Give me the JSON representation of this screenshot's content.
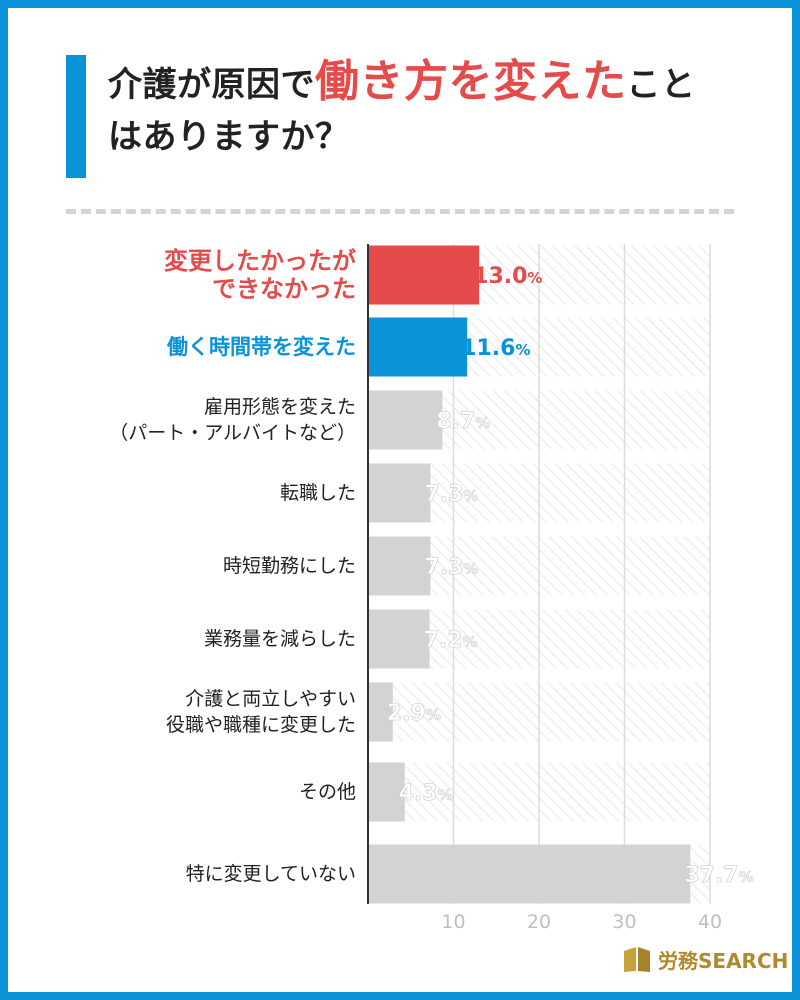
{
  "title": {
    "part1": "介護が原因で",
    "highlight": "働き方を変えた",
    "part2": "こと",
    "line2": "はありますか？"
  },
  "colors": {
    "accent_blue": "#0a93d8",
    "accent_red": "#e54b4b",
    "bar_gray": "#d3d3d3",
    "logo_gold": "#b08a2e"
  },
  "logo": {
    "brand": "労務",
    "suffix": "SEARCH"
  },
  "chart_data": {
    "type": "bar",
    "orientation": "horizontal",
    "categories": [
      [
        "変更したかったが",
        "できなかった"
      ],
      [
        "働く時間帯を変えた"
      ],
      [
        "雇用形態を変えた",
        "（パート・アルバイトなど）"
      ],
      [
        "転職した"
      ],
      [
        "時短勤務にした"
      ],
      [
        "業務量を減らした"
      ],
      [
        "介護と両立しやすい",
        "役職や職種に変更した"
      ],
      [
        "その他"
      ],
      [
        "特に変更していない"
      ]
    ],
    "values": [
      13.0,
      11.6,
      8.7,
      7.3,
      7.3,
      7.2,
      2.9,
      4.3,
      37.7
    ],
    "value_labels": [
      "13.0%",
      "11.6%",
      "8.7%",
      "7.3%",
      "7.3%",
      "7.2%",
      "2.9%",
      "4.3%",
      "37.7%"
    ],
    "highlight": [
      "red",
      "blue",
      "none",
      "none",
      "none",
      "none",
      "none",
      "none",
      "none"
    ],
    "xlim": [
      0,
      40
    ],
    "xticks": [
      10,
      20,
      30,
      40
    ],
    "grid": true
  }
}
